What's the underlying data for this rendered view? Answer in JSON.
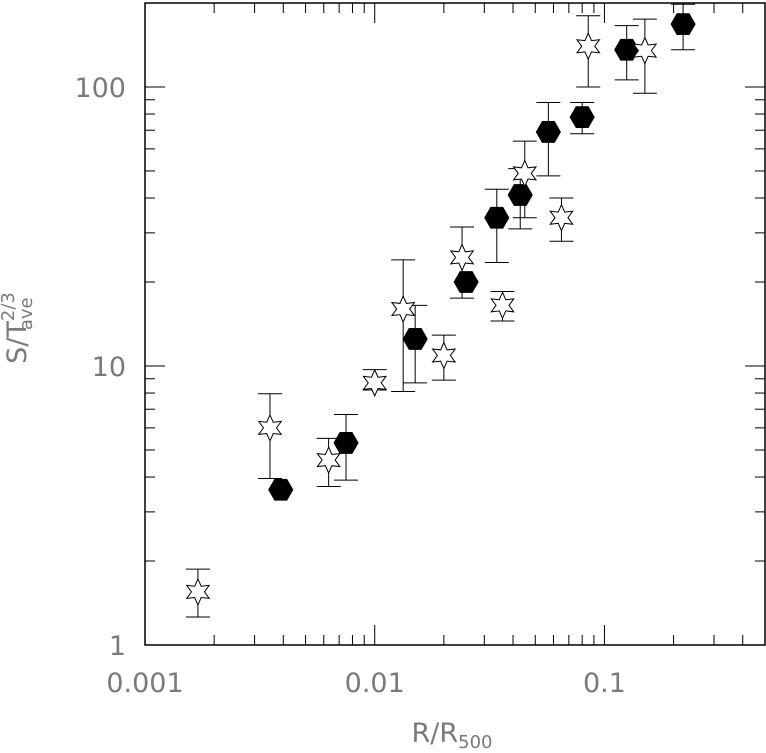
{
  "chart_data": {
    "type": "scatter",
    "x_scale": "log",
    "y_scale": "log",
    "xlim": [
      0.001,
      0.5
    ],
    "ylim": [
      1,
      200
    ],
    "xticks": [
      {
        "value": 0.001,
        "label": "0.001"
      },
      {
        "value": 0.01,
        "label": "0.01"
      },
      {
        "value": 0.1,
        "label": "0.1"
      }
    ],
    "yticks": [
      {
        "value": 1,
        "label": "1"
      },
      {
        "value": 10,
        "label": "10"
      },
      {
        "value": 100,
        "label": "100"
      }
    ],
    "xlabel": {
      "main": "R/R",
      "sub": "500"
    },
    "ylabel": {
      "main": "S/T",
      "sup": "2/3",
      "sub": "ave"
    },
    "grid": false,
    "series": [
      {
        "marker": "filled-hexagon",
        "points": [
          {
            "x": 0.0039,
            "y": 3.6
          },
          {
            "x": 0.0075,
            "y": 5.3,
            "ylo": 3.9,
            "yhi": 6.7
          },
          {
            "x": 0.015,
            "y": 12.5,
            "ylo": 8.7,
            "yhi": 16.5
          },
          {
            "x": 0.025,
            "y": 20
          },
          {
            "x": 0.034,
            "y": 34,
            "ylo": 23.5,
            "yhi": 43
          },
          {
            "x": 0.043,
            "y": 41,
            "ylo": 31,
            "yhi": 51
          },
          {
            "x": 0.057,
            "y": 69,
            "ylo": 48,
            "yhi": 88
          },
          {
            "x": 0.08,
            "y": 78,
            "ylo": 68,
            "yhi": 88
          },
          {
            "x": 0.125,
            "y": 136,
            "ylo": 106,
            "yhi": 166
          },
          {
            "x": 0.22,
            "y": 168,
            "ylo": 136,
            "yhi": 198
          }
        ]
      },
      {
        "marker": "open-star",
        "points": [
          {
            "x": 0.0017,
            "y": 1.55,
            "ylo": 1.26,
            "yhi": 1.87
          },
          {
            "x": 0.0035,
            "y": 6.0,
            "ylo": 3.95,
            "yhi": 7.95
          },
          {
            "x": 0.0063,
            "y": 4.6,
            "ylo": 3.7,
            "yhi": 5.5
          },
          {
            "x": 0.01,
            "y": 8.7,
            "ylo": 8.2,
            "yhi": 9.7
          },
          {
            "x": 0.0133,
            "y": 16,
            "ylo": 8.1,
            "yhi": 24
          },
          {
            "x": 0.02,
            "y": 10.9,
            "ylo": 8.9,
            "yhi": 12.9
          },
          {
            "x": 0.024,
            "y": 24.5,
            "ylo": 17.5,
            "yhi": 31.5
          },
          {
            "x": 0.036,
            "y": 16.5,
            "ylo": 14.5,
            "yhi": 18.5
          },
          {
            "x": 0.045,
            "y": 49,
            "ylo": 34,
            "yhi": 64
          },
          {
            "x": 0.065,
            "y": 34,
            "ylo": 28,
            "yhi": 40
          },
          {
            "x": 0.085,
            "y": 140,
            "ylo": 100,
            "yhi": 180
          },
          {
            "x": 0.15,
            "y": 135,
            "ylo": 95,
            "yhi": 175
          }
        ]
      }
    ]
  }
}
